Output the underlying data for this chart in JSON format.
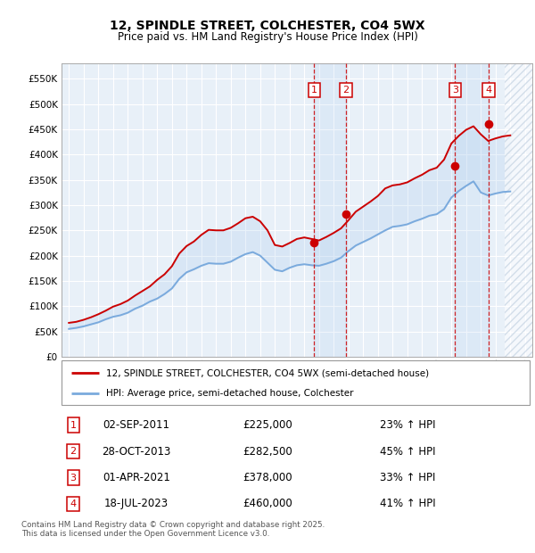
{
  "title": "12, SPINDLE STREET, COLCHESTER, CO4 5WX",
  "subtitle": "Price paid vs. HM Land Registry's House Price Index (HPI)",
  "ylim": [
    0,
    580000
  ],
  "yticks": [
    0,
    50000,
    100000,
    150000,
    200000,
    250000,
    300000,
    350000,
    400000,
    450000,
    500000,
    550000
  ],
  "ytick_labels": [
    "£0",
    "£50K",
    "£100K",
    "£150K",
    "£200K",
    "£250K",
    "£300K",
    "£350K",
    "£400K",
    "£450K",
    "£500K",
    "£550K"
  ],
  "xlim_start": 1994.5,
  "xlim_end": 2026.5,
  "red_line_color": "#cc0000",
  "blue_line_color": "#7aaadd",
  "sale_marker_color": "#cc0000",
  "bg_color": "#e8f0f8",
  "transactions": [
    {
      "num": 1,
      "date": "02-SEP-2011",
      "price": 225000,
      "year": 2011.67,
      "pct": "23%",
      "direction": "↑"
    },
    {
      "num": 2,
      "date": "28-OCT-2013",
      "price": 282500,
      "year": 2013.83,
      "pct": "45%",
      "direction": "↑"
    },
    {
      "num": 3,
      "date": "01-APR-2021",
      "price": 378000,
      "year": 2021.25,
      "pct": "33%",
      "direction": "↑"
    },
    {
      "num": 4,
      "date": "18-JUL-2023",
      "price": 460000,
      "year": 2023.54,
      "pct": "41%",
      "direction": "↑"
    }
  ],
  "legend_line1": "12, SPINDLE STREET, COLCHESTER, CO4 5WX (semi-detached house)",
  "legend_line2": "HPI: Average price, semi-detached house, Colchester",
  "footnote": "Contains HM Land Registry data © Crown copyright and database right 2025.\nThis data is licensed under the Open Government Licence v3.0.",
  "hpi_data_x": [
    1995,
    1995.5,
    1996,
    1996.5,
    1997,
    1997.5,
    1998,
    1998.5,
    1999,
    1999.5,
    2000,
    2000.5,
    2001,
    2001.5,
    2002,
    2002.5,
    2003,
    2003.5,
    2004,
    2004.5,
    2005,
    2005.5,
    2006,
    2006.5,
    2007,
    2007.5,
    2008,
    2008.5,
    2009,
    2009.5,
    2010,
    2010.5,
    2011,
    2011.5,
    2012,
    2012.5,
    2013,
    2013.5,
    2014,
    2014.5,
    2015,
    2015.5,
    2016,
    2016.5,
    2017,
    2017.5,
    2018,
    2018.5,
    2019,
    2019.5,
    2020,
    2020.5,
    2021,
    2021.5,
    2022,
    2022.5,
    2023,
    2023.5,
    2024,
    2024.5,
    2025
  ],
  "hpi_data_y": [
    55000,
    57000,
    60000,
    64000,
    68000,
    74000,
    79000,
    82000,
    87000,
    95000,
    101000,
    109000,
    115000,
    124000,
    135000,
    154000,
    167000,
    173000,
    180000,
    185000,
    184000,
    184000,
    188000,
    196000,
    203000,
    207000,
    200000,
    186000,
    172000,
    169000,
    176000,
    181000,
    183000,
    181000,
    180000,
    184000,
    189000,
    196000,
    209000,
    220000,
    227000,
    234000,
    242000,
    250000,
    257000,
    259000,
    262000,
    268000,
    273000,
    279000,
    282000,
    292000,
    315000,
    328000,
    338000,
    347000,
    325000,
    319000,
    323000,
    326000,
    327000
  ],
  "price_line_x": [
    1995,
    1995.5,
    1996,
    1996.5,
    1997,
    1997.5,
    1998,
    1998.5,
    1999,
    1999.5,
    2000,
    2000.5,
    2001,
    2001.5,
    2002,
    2002.5,
    2003,
    2003.5,
    2004,
    2004.5,
    2005,
    2005.5,
    2006,
    2006.5,
    2007,
    2007.5,
    2008,
    2008.5,
    2009,
    2009.5,
    2010,
    2010.5,
    2011,
    2011.5,
    2012,
    2012.5,
    2013,
    2013.5,
    2014,
    2014.5,
    2015,
    2015.5,
    2016,
    2016.5,
    2017,
    2017.5,
    2018,
    2018.5,
    2019,
    2019.5,
    2020,
    2020.5,
    2021,
    2021.5,
    2022,
    2022.5,
    2023,
    2023.5,
    2024,
    2024.5,
    2025
  ],
  "price_line_y": [
    67000,
    69000,
    73000,
    78000,
    84000,
    91000,
    99000,
    104000,
    111000,
    121000,
    130000,
    139000,
    152000,
    163000,
    179000,
    204000,
    219000,
    228000,
    241000,
    251000,
    250000,
    250000,
    255000,
    264000,
    274000,
    277000,
    268000,
    250000,
    221000,
    218000,
    225000,
    233000,
    236000,
    233000,
    230000,
    237000,
    245000,
    254000,
    270000,
    287000,
    297000,
    307000,
    318000,
    333000,
    339000,
    341000,
    345000,
    353000,
    360000,
    369000,
    374000,
    390000,
    422000,
    437000,
    449000,
    456000,
    440000,
    427000,
    432000,
    436000,
    438000
  ]
}
